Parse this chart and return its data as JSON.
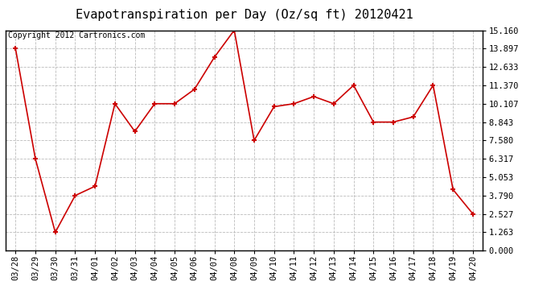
{
  "title": "Evapotranspiration per Day (Oz/sq ft) 20120421",
  "copyright": "Copyright 2012 Cartronics.com",
  "x_labels": [
    "03/28",
    "03/29",
    "03/30",
    "03/31",
    "04/01",
    "04/02",
    "04/03",
    "04/04",
    "04/05",
    "04/06",
    "04/07",
    "04/08",
    "04/09",
    "04/10",
    "04/11",
    "04/12",
    "04/13",
    "04/14",
    "04/15",
    "04/16",
    "04/17",
    "04/18",
    "04/19",
    "04/20"
  ],
  "y_values": [
    13.897,
    6.317,
    1.263,
    3.79,
    4.43,
    10.107,
    8.2,
    10.107,
    10.107,
    11.1,
    13.3,
    15.16,
    7.58,
    9.9,
    10.107,
    10.6,
    10.107,
    11.37,
    8.843,
    8.843,
    9.2,
    11.37,
    4.2,
    2.527
  ],
  "y_min": 0.0,
  "y_max": 15.16,
  "y_ticks": [
    0.0,
    1.263,
    2.527,
    3.79,
    5.053,
    6.317,
    7.58,
    8.843,
    10.107,
    11.37,
    12.633,
    13.897,
    15.16
  ],
  "line_color": "#cc0000",
  "marker": "+",
  "grid_color": "#bbbbbb",
  "bg_color": "#ffffff",
  "plot_bg_color": "#ffffff",
  "title_fontsize": 11,
  "copyright_fontsize": 7,
  "tick_fontsize": 7.5
}
